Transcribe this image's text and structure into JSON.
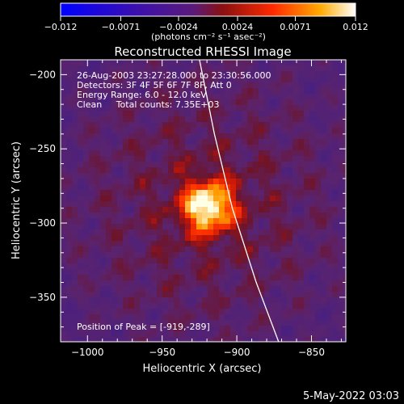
{
  "chart_data": {
    "type": "heatmap",
    "title": "Reconstructed RHESSI Image",
    "xlabel": "Heliocentric X (arcsec)",
    "ylabel": "Heliocentric Y (arcsec)",
    "xlim": [
      -1018,
      -827
    ],
    "ylim": [
      -380,
      -190
    ],
    "x_ticks": [
      -1000,
      -950,
      -900,
      -850
    ],
    "y_ticks": [
      -350,
      -300,
      -250,
      -200
    ],
    "x_tick_labels": [
      "−1000",
      "−950",
      "−900",
      "−850"
    ],
    "y_tick_labels": [
      "−350",
      "−300",
      "−250",
      "−200"
    ],
    "colorbar": {
      "min": -0.012,
      "max": 0.012,
      "ticks": [
        -0.012,
        -0.0071,
        -0.0024,
        0.0024,
        0.0071,
        0.012
      ],
      "tick_labels": [
        "−0.012",
        "−0.0071",
        "−0.0024",
        "0.0024",
        "0.0071",
        "0.012"
      ],
      "units": "(photons cm⁻² s⁻¹ asec⁻²)"
    },
    "annotations": [
      "26-Aug-2003 23:27:28.000 to 23:30:56.000",
      "Detectors: 3F 4F 5F 6F 7F 8F, Att 0",
      "Energy Range: 6.0 - 12.0 keV",
      "Clean     Total counts: 7.35E+03",
      "Position of Peak = [-919,-289]"
    ],
    "peak": {
      "x": -919,
      "y": -289
    },
    "limb_points": [
      [
        -925,
        -190
      ],
      [
        -915,
        -240
      ],
      [
        -903,
        -290
      ],
      [
        -887,
        -340
      ],
      [
        -872,
        -380
      ]
    ],
    "footer_date": "5-May-2022 03:03"
  }
}
